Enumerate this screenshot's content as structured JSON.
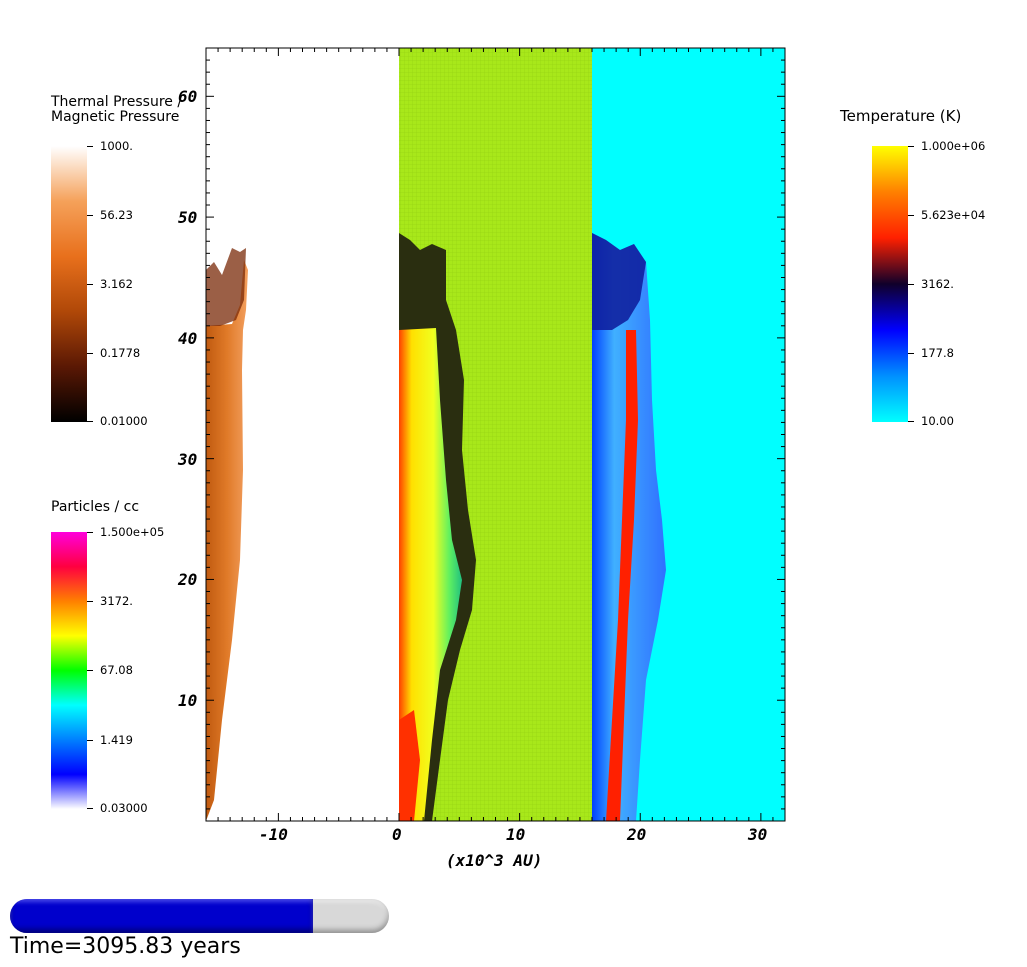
{
  "colorbars": {
    "thermal": {
      "title_line1": "Thermal Pressure /",
      "title_line2": "Magnetic Pressure",
      "labels": [
        "1000.",
        "56.23",
        "3.162",
        "0.1778",
        "0.01000"
      ],
      "colors": [
        "#ffffff",
        "#f5a15a",
        "#e8701c",
        "#b04808",
        "#5a1804",
        "#000000"
      ]
    },
    "particles": {
      "title": "Particles / cc",
      "labels": [
        "1.500e+05",
        "3172.",
        "67.08",
        "1.419",
        "0.03000"
      ],
      "colors": [
        "#ff00dc",
        "#ff0040",
        "#ff8000",
        "#ffff00",
        "#00ff00",
        "#00ffff",
        "#0080ff",
        "#0000ff",
        "#ffffff"
      ]
    },
    "temperature": {
      "title": "Temperature (K)",
      "labels": [
        "1.000e+06",
        "5.623e+04",
        "3162.",
        "177.8",
        "10.00"
      ],
      "colors": [
        "#ffff00",
        "#ff8000",
        "#ff2000",
        "#10002a",
        "#0000ff",
        "#0090ff",
        "#00ffff"
      ]
    }
  },
  "axes": {
    "x_label": "(x10^3 AU)",
    "x_ticks": [
      "-10",
      "0",
      "10",
      "20",
      "30"
    ],
    "y_ticks": [
      "10",
      "20",
      "30",
      "40",
      "50",
      "60"
    ],
    "x_range": [
      -16,
      32
    ],
    "y_range": [
      0,
      64
    ]
  },
  "panels": {
    "left_bg": "#ffffff",
    "middle_bg": "#a8e81a",
    "right_bg": "#00ffff"
  },
  "progress": {
    "fraction": 0.8,
    "fill_color": "#0000cc",
    "track_color": "#d8d8d8"
  },
  "time_text": "Time=3095.83 years"
}
